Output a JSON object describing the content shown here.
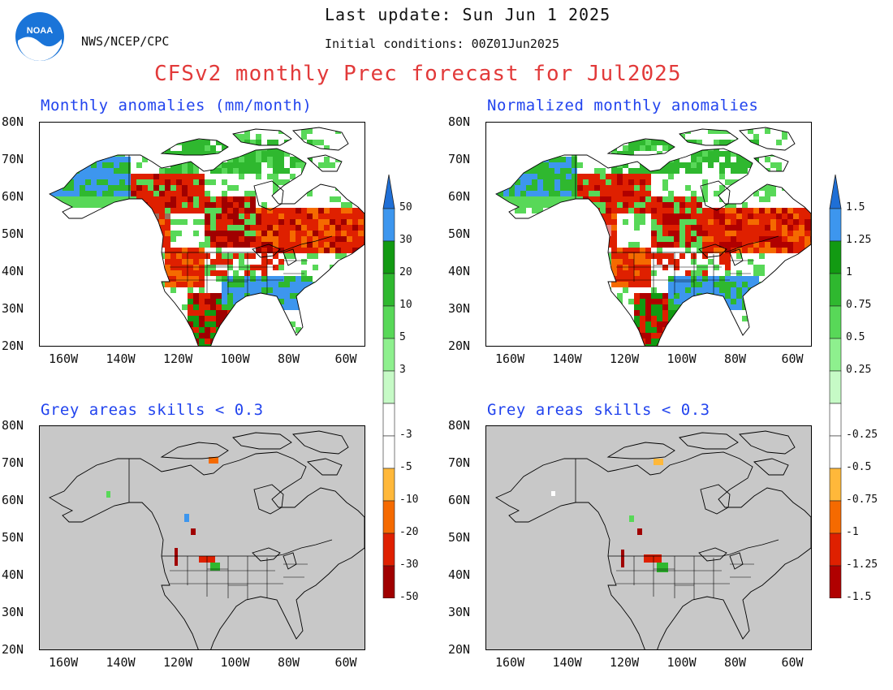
{
  "header": {
    "last_update": "Last update: Sun Jun 1 2025",
    "agency": "NWS/NCEP/CPC",
    "initial_conditions": "Initial conditions: 00Z01Jun2025",
    "title": "CFSv2 monthly Prec forecast for Jul2025",
    "logo_text": "NOAA"
  },
  "panels": {
    "top_left_title": "Monthly anomalies (mm/month)",
    "top_right_title": "Normalized monthly anomalies",
    "bottom_left_title": "Grey areas skills < 0.3",
    "bottom_right_title": "Grey areas skills < 0.3"
  },
  "axes": {
    "lat_labels": [
      "80N",
      "70N",
      "60N",
      "50N",
      "40N",
      "30N",
      "20N"
    ],
    "lon_labels": [
      "160W",
      "140W",
      "120W",
      "100W",
      "80W",
      "60W"
    ]
  },
  "colorbar_left": {
    "labels": [
      "50",
      "30",
      "20",
      "10",
      "5",
      "3",
      "-3",
      "-5",
      "-10",
      "-20",
      "-30",
      "-50"
    ]
  },
  "colorbar_right": {
    "labels": [
      "1.5",
      "1.25",
      "1",
      "0.75",
      "0.5",
      "0.25",
      "-0.25",
      "-0.5",
      "-0.75",
      "-1",
      "-1.25",
      "-1.5"
    ]
  },
  "colors": {
    "wet": [
      "#1f6fd6",
      "#3d96ee",
      "#129a12",
      "#2fb82f",
      "#58d858",
      "#8ef08e",
      "#c6fac6"
    ],
    "dry_left": [
      "#ffb83a",
      "#f56a00",
      "#df2000",
      "#a00000",
      "#9a7060",
      "#5c3a24"
    ],
    "dry_right": [
      "#ffb83a",
      "#f56a00",
      "#df2000",
      "#b00000",
      "#e88484",
      "#5c3a24"
    ],
    "skill_mask": "#c8c8c8",
    "title_blue": "#2244ee",
    "title_red": "#e23a3a"
  }
}
